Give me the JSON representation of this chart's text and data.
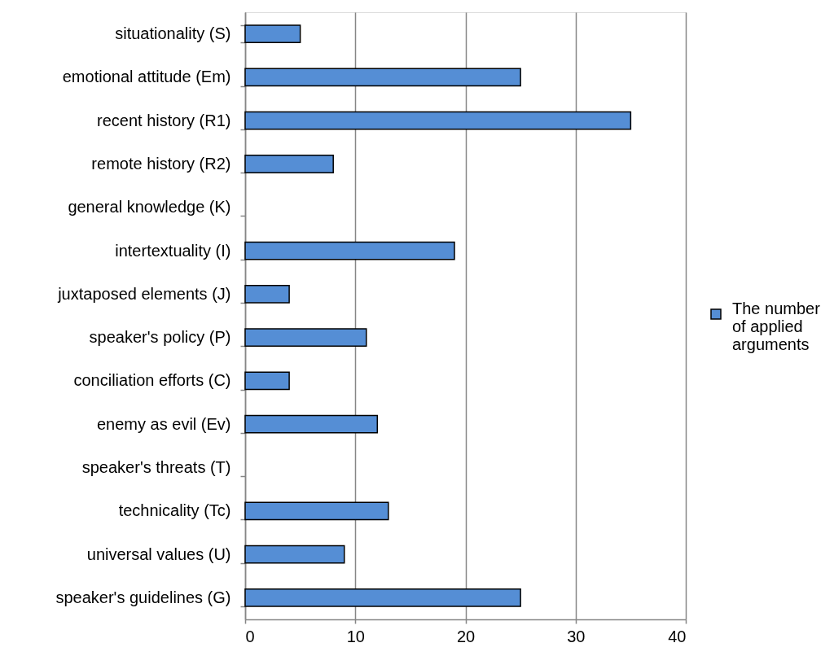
{
  "chart_data": {
    "type": "bar",
    "orientation": "horizontal",
    "categories": [
      "situationality  (S)",
      "emotional attitude  (Em)",
      "recent history  (R1)",
      "remote history  (R2)",
      "general knowledge  (K)",
      "intertextuality  (I)",
      "juxtaposed elements  (J)",
      "speaker's policy  (P)",
      "conciliation efforts  (C)",
      "enemy as evil  (Ev)",
      "speaker's threats  (T)",
      "technicality  (Tc)",
      "universal values  (U)",
      "speaker's guidelines  (G)"
    ],
    "series": [
      {
        "name": "The number of applied arguments",
        "color": "#558ed5",
        "values": [
          5,
          25,
          35,
          8,
          0,
          19,
          4,
          11,
          4,
          12,
          0,
          13,
          9,
          25
        ]
      }
    ],
    "xlim": [
      0,
      40
    ],
    "xticks": [
      0,
      10,
      20,
      30,
      40
    ],
    "grid": "x",
    "legend": "right"
  }
}
